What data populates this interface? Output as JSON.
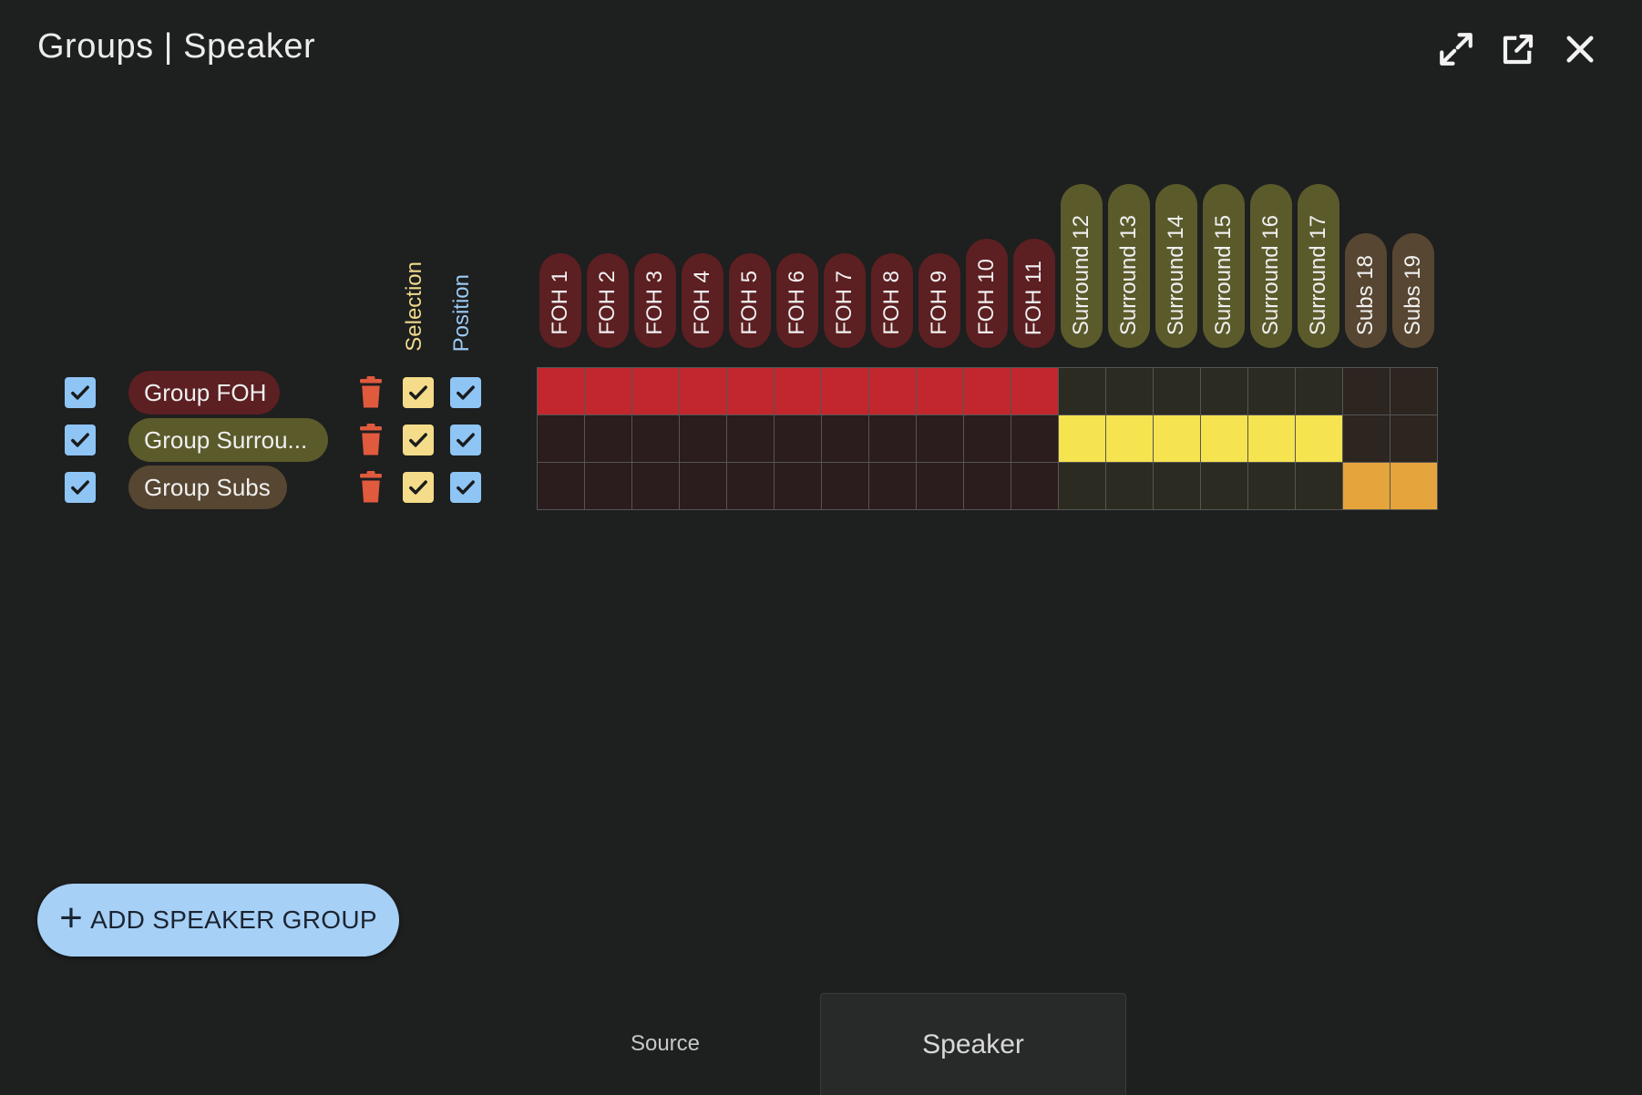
{
  "window": {
    "title": "Groups | Speaker",
    "icons": [
      "expand-icon",
      "open-external-icon",
      "close-icon"
    ]
  },
  "columns": {
    "selection_label": "Selection",
    "position_label": "Position"
  },
  "colors": {
    "foh_header": "#5c1f22",
    "surround_header": "#5b5a2b",
    "subs_header": "#574631",
    "foh_active": "#c1272d",
    "surround_active": "#f5e34f",
    "subs_active": "#e6a43c",
    "foh_inactive": "#2b1c1d",
    "surround_inactive": "#2b2b22",
    "subs_inactive": "#2c2520",
    "checkbox_blue": "#8ec5f5",
    "checkbox_yellow": "#f4dc8a",
    "trash": "#e05a3e",
    "add_button": "#a6d0f6"
  },
  "speakers": [
    {
      "label": "FOH 1",
      "type": "foh"
    },
    {
      "label": "FOH 2",
      "type": "foh"
    },
    {
      "label": "FOH 3",
      "type": "foh"
    },
    {
      "label": "FOH 4",
      "type": "foh"
    },
    {
      "label": "FOH 5",
      "type": "foh"
    },
    {
      "label": "FOH 6",
      "type": "foh"
    },
    {
      "label": "FOH 7",
      "type": "foh"
    },
    {
      "label": "FOH 8",
      "type": "foh"
    },
    {
      "label": "FOH 9",
      "type": "foh"
    },
    {
      "label": "FOH 10",
      "type": "foh"
    },
    {
      "label": "FOH 11",
      "type": "foh"
    },
    {
      "label": "Surround 12",
      "type": "surround"
    },
    {
      "label": "Surround 13",
      "type": "surround"
    },
    {
      "label": "Surround 14",
      "type": "surround"
    },
    {
      "label": "Surround 15",
      "type": "surround"
    },
    {
      "label": "Surround 16",
      "type": "surround"
    },
    {
      "label": "Surround 17",
      "type": "surround"
    },
    {
      "label": "Subs 18",
      "type": "subs"
    },
    {
      "label": "Subs 19",
      "type": "subs"
    }
  ],
  "groups": [
    {
      "name": "Group FOH",
      "type": "foh",
      "enabled": true,
      "selection": true,
      "position": true,
      "members": [
        1,
        1,
        1,
        1,
        1,
        1,
        1,
        1,
        1,
        1,
        1,
        0,
        0,
        0,
        0,
        0,
        0,
        0,
        0
      ]
    },
    {
      "name": "Group Surrou...",
      "type": "surround",
      "enabled": true,
      "selection": true,
      "position": true,
      "members": [
        0,
        0,
        0,
        0,
        0,
        0,
        0,
        0,
        0,
        0,
        0,
        1,
        1,
        1,
        1,
        1,
        1,
        0,
        0
      ]
    },
    {
      "name": "Group Subs",
      "type": "subs",
      "enabled": true,
      "selection": true,
      "position": true,
      "members": [
        0,
        0,
        0,
        0,
        0,
        0,
        0,
        0,
        0,
        0,
        0,
        0,
        0,
        0,
        0,
        0,
        0,
        1,
        1
      ]
    }
  ],
  "add_button": {
    "label": "ADD SPEAKER GROUP",
    "icon": "plus-icon"
  },
  "tabs": [
    {
      "label": "Source",
      "active": false
    },
    {
      "label": "Speaker",
      "active": true
    }
  ]
}
